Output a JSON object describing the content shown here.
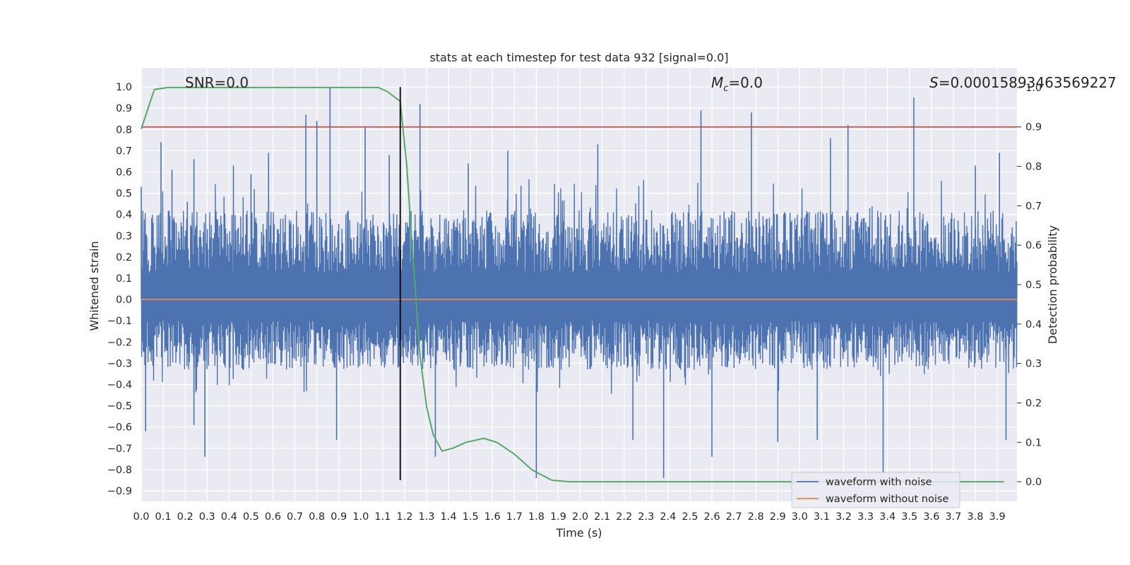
{
  "chart_data": {
    "type": "line",
    "title": "stats at each timestep for test data 932 [signal=0.0]",
    "xlabel": "Time (s)",
    "ylabel": "Whitened strain",
    "ylabel_right": "Detection probability",
    "xlim": [
      0.0,
      3.99
    ],
    "ylim": [
      -0.95,
      1.09
    ],
    "ylim_right": [
      -0.05,
      1.05
    ],
    "x_ticks": [
      "0.0",
      "0.1",
      "0.2",
      "0.3",
      "0.4",
      "0.5",
      "0.6",
      "0.7",
      "0.8",
      "0.9",
      "1.0",
      "1.1",
      "1.2",
      "1.3",
      "1.4",
      "1.5",
      "1.6",
      "1.7",
      "1.8",
      "1.9",
      "2.0",
      "2.1",
      "2.2",
      "2.3",
      "2.4",
      "2.5",
      "2.6",
      "2.7",
      "2.8",
      "2.9",
      "3.0",
      "3.1",
      "3.2",
      "3.3",
      "3.4",
      "3.5",
      "3.6",
      "3.7",
      "3.8",
      "3.9"
    ],
    "y_ticks": [
      "1.0",
      "0.9",
      "0.8",
      "0.7",
      "0.6",
      "0.5",
      "0.4",
      "0.3",
      "0.2",
      "0.1",
      "0.0",
      "−0.1",
      "−0.2",
      "−0.3",
      "−0.4",
      "−0.5",
      "−0.6",
      "−0.7",
      "−0.8",
      "−0.9"
    ],
    "y_tick_values": [
      1.0,
      0.9,
      0.8,
      0.7,
      0.6,
      0.5,
      0.4,
      0.3,
      0.2,
      0.1,
      0.0,
      -0.1,
      -0.2,
      -0.3,
      -0.4,
      -0.5,
      -0.6,
      -0.7,
      -0.8,
      -0.9
    ],
    "y_right_ticks": [
      "1.0",
      "0.9",
      "0.8",
      "0.7",
      "0.6",
      "0.5",
      "0.4",
      "0.3",
      "0.2",
      "0.1",
      "0.0"
    ],
    "y_right_tick_values": [
      1.0,
      0.9,
      0.8,
      0.7,
      0.6,
      0.5,
      0.4,
      0.3,
      0.2,
      0.1,
      0.0
    ],
    "grid": true,
    "legend_position": "lower-right",
    "annotations": {
      "snr": "SNR=0.0",
      "mc_symbol": "M",
      "mc_sub": "c",
      "mc_value": "=0.0",
      "s_symbol": "S",
      "s_value": "=0.00015893463569227",
      "marker_time": 1.18
    },
    "series": [
      {
        "name": "waveform with noise",
        "color": "#4c72b0",
        "style": "noise",
        "envelope_upper": 0.42,
        "envelope_lower": -0.33,
        "spikes": [
          {
            "x": 0.0,
            "y": 0.53
          },
          {
            "x": 0.02,
            "y": -0.62
          },
          {
            "x": 0.09,
            "y": 0.74
          },
          {
            "x": 0.14,
            "y": 0.61
          },
          {
            "x": 0.21,
            "y": 0.46
          },
          {
            "x": 0.24,
            "y": -0.59
          },
          {
            "x": 0.24,
            "y": 0.66
          },
          {
            "x": 0.29,
            "y": -0.74
          },
          {
            "x": 0.42,
            "y": 0.63
          },
          {
            "x": 0.5,
            "y": 0.59
          },
          {
            "x": 0.58,
            "y": 0.69
          },
          {
            "x": 0.75,
            "y": 0.87
          },
          {
            "x": 0.8,
            "y": 0.84
          },
          {
            "x": 0.86,
            "y": 1.0
          },
          {
            "x": 0.89,
            "y": -0.66
          },
          {
            "x": 1.02,
            "y": 0.81
          },
          {
            "x": 1.13,
            "y": 0.68
          },
          {
            "x": 1.18,
            "y": 0.65
          },
          {
            "x": 1.27,
            "y": 0.92
          },
          {
            "x": 1.34,
            "y": -0.74
          },
          {
            "x": 1.49,
            "y": 0.64
          },
          {
            "x": 1.67,
            "y": 0.7
          },
          {
            "x": 1.8,
            "y": -0.84
          },
          {
            "x": 2.08,
            "y": 0.73
          },
          {
            "x": 2.24,
            "y": -0.66
          },
          {
            "x": 2.38,
            "y": -0.84
          },
          {
            "x": 2.55,
            "y": 0.89
          },
          {
            "x": 2.6,
            "y": -0.74
          },
          {
            "x": 2.78,
            "y": 0.88
          },
          {
            "x": 2.9,
            "y": -0.67
          },
          {
            "x": 3.08,
            "y": -0.66
          },
          {
            "x": 3.14,
            "y": 0.76
          },
          {
            "x": 3.22,
            "y": 0.82
          },
          {
            "x": 3.38,
            "y": -0.82
          },
          {
            "x": 3.52,
            "y": 0.95
          },
          {
            "x": 3.8,
            "y": 0.63
          },
          {
            "x": 3.91,
            "y": 0.69
          },
          {
            "x": 3.94,
            "y": -0.66
          }
        ]
      },
      {
        "name": "waveform without noise",
        "color": "#dd8452",
        "x": [
          0.0,
          3.99
        ],
        "y": [
          0.0,
          0.0
        ]
      },
      {
        "name": "",
        "color": "#55a868",
        "axis": "right",
        "x": [
          0.0,
          0.06,
          0.12,
          0.18,
          0.24,
          0.3,
          0.36,
          0.42,
          0.48,
          0.54,
          0.6,
          0.66,
          0.72,
          0.78,
          0.84,
          0.9,
          0.96,
          1.02,
          1.08,
          1.12,
          1.18,
          1.21,
          1.24,
          1.27,
          1.3,
          1.33,
          1.37,
          1.42,
          1.48,
          1.56,
          1.62,
          1.7,
          1.78,
          1.87,
          1.95,
          2.1,
          2.5,
          3.0,
          3.5,
          3.93
        ],
        "y": [
          0.895,
          0.995,
          1.0,
          1.0,
          1.0,
          1.0,
          1.0,
          1.0,
          1.0,
          1.0,
          1.0,
          1.0,
          1.0,
          1.0,
          1.0,
          1.0,
          1.0,
          1.0,
          1.0,
          0.99,
          0.965,
          0.8,
          0.55,
          0.32,
          0.19,
          0.12,
          0.078,
          0.085,
          0.1,
          0.11,
          0.1,
          0.07,
          0.03,
          0.004,
          0.0,
          0.0,
          0.0,
          0.0,
          0.0,
          0.0
        ]
      },
      {
        "name": "",
        "color": "#c44e52",
        "axis": "right",
        "x": [
          0.0,
          3.99
        ],
        "y": [
          0.9,
          0.9
        ]
      }
    ]
  }
}
